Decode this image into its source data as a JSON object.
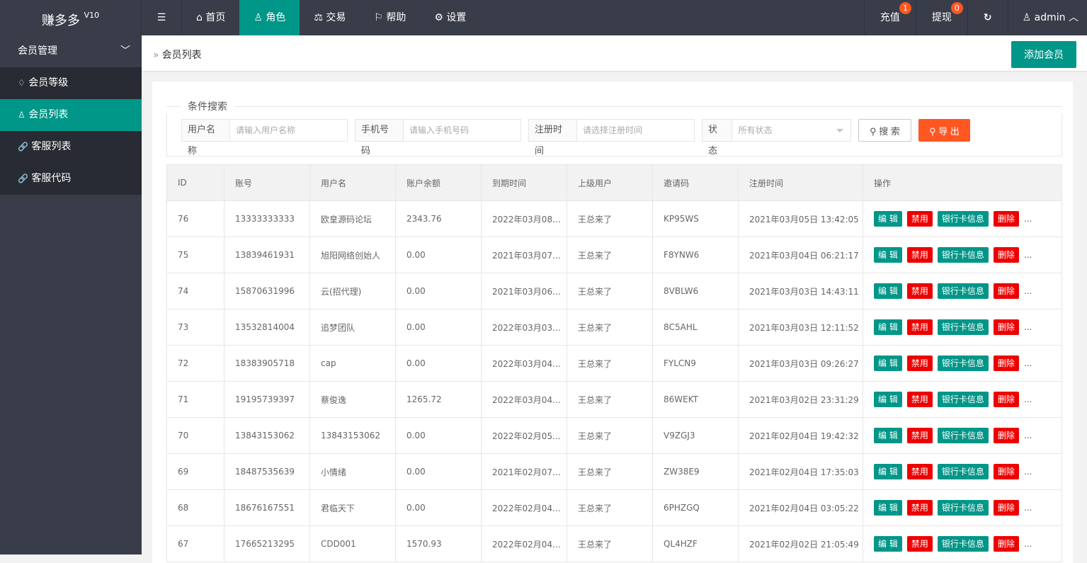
{
  "app": {
    "title": "赚多多",
    "version": "V10"
  },
  "nav": [
    {
      "label": "首页",
      "icon": "home-icon",
      "glyph": "⌂"
    },
    {
      "label": "角色",
      "icon": "user-icon",
      "glyph": "♙"
    },
    {
      "label": "交易",
      "icon": "scale-icon",
      "glyph": "⚖"
    },
    {
      "label": "帮助",
      "icon": "flag-icon",
      "glyph": "⚐"
    },
    {
      "label": "设置",
      "icon": "gear-icon",
      "glyph": "⚙"
    }
  ],
  "nav_active": 1,
  "topright": {
    "recharge": "充值",
    "recharge_badge": "1",
    "withdraw": "提现",
    "withdraw_badge": "0",
    "user": "admin"
  },
  "sidebar": {
    "group": "会员管理",
    "items": [
      {
        "label": "会员等级",
        "icon": "diamond-icon",
        "glyph": "♢"
      },
      {
        "label": "会员列表",
        "icon": "user-icon",
        "glyph": "♙"
      },
      {
        "label": "客服列表",
        "icon": "link-icon",
        "glyph": "🔗"
      },
      {
        "label": "客服代码",
        "icon": "link-icon",
        "glyph": "🔗"
      }
    ],
    "active": 1
  },
  "breadcrumb": "会员列表",
  "add_button": "添加会员",
  "search": {
    "legend": "条件搜索",
    "username_label": "用户名称",
    "username_placeholder": "请输入用户名称",
    "phone_label": "手机号码",
    "phone_placeholder": "请输入手机号码",
    "regtime_label": "注册时间",
    "regtime_placeholder": "请选择注册时间",
    "status_label": "状态",
    "status_value": "所有状态",
    "search_button": "搜 索",
    "export_button": "导 出"
  },
  "colors": {
    "primary": "#009688",
    "danger": "#e00000",
    "warm": "#FF5722",
    "dark": "#393D49"
  },
  "table": {
    "columns": [
      "ID",
      "账号",
      "用户名",
      "账户余额",
      "到期时间",
      "上级用户",
      "邀请码",
      "注册时间",
      "操作"
    ],
    "actions": {
      "edit": "编 辑",
      "disable": "禁用",
      "bank": "银行卡信息",
      "delete": "删除",
      "more": "..."
    },
    "rows": [
      [
        "76",
        "13333333333",
        "欧皇源码论坛",
        "2343.76",
        "2022年03月08...",
        "王总来了",
        "KP95WS",
        "2021年03月05日 13:42:05"
      ],
      [
        "75",
        "13839461931",
        "旭阳网络创始人",
        "0.00",
        "2021年03月07...",
        "王总来了",
        "F8YNW6",
        "2021年03月04日 06:21:17"
      ],
      [
        "74",
        "15870631996",
        "云(招代理)",
        "0.00",
        "2021年03月06...",
        "王总来了",
        "8VBLW6",
        "2021年03月03日 14:43:11"
      ],
      [
        "73",
        "13532814004",
        "追梦团队",
        "0.00",
        "2022年03月03...",
        "王总来了",
        "8C5AHL",
        "2021年03月03日 12:11:52"
      ],
      [
        "72",
        "18383905718",
        "cap",
        "0.00",
        "2022年03月04...",
        "王总来了",
        "FYLCN9",
        "2021年03月03日 09:26:27"
      ],
      [
        "71",
        "19195739397",
        "蔡俊逸",
        "1265.72",
        "2022年03月04...",
        "王总来了",
        "86WEKT",
        "2021年03月02日 23:31:29"
      ],
      [
        "70",
        "13843153062",
        "13843153062",
        "0.00",
        "2022年02月05...",
        "王总来了",
        "V9ZGJ3",
        "2021年02月04日 19:42:32"
      ],
      [
        "69",
        "18487535639",
        "小情绪",
        "0.00",
        "2021年02月07...",
        "王总来了",
        "ZW38E9",
        "2021年02月04日 17:35:03"
      ],
      [
        "68",
        "18676167551",
        "君临天下",
        "0.00",
        "2022年02月04...",
        "王总来了",
        "6PHZGQ",
        "2021年02月04日 03:05:22"
      ],
      [
        "67",
        "17665213295",
        "CDD001",
        "1570.93",
        "2022年02月04...",
        "王总来了",
        "QL4HZF",
        "2021年02月02日 21:05:49"
      ]
    ]
  }
}
